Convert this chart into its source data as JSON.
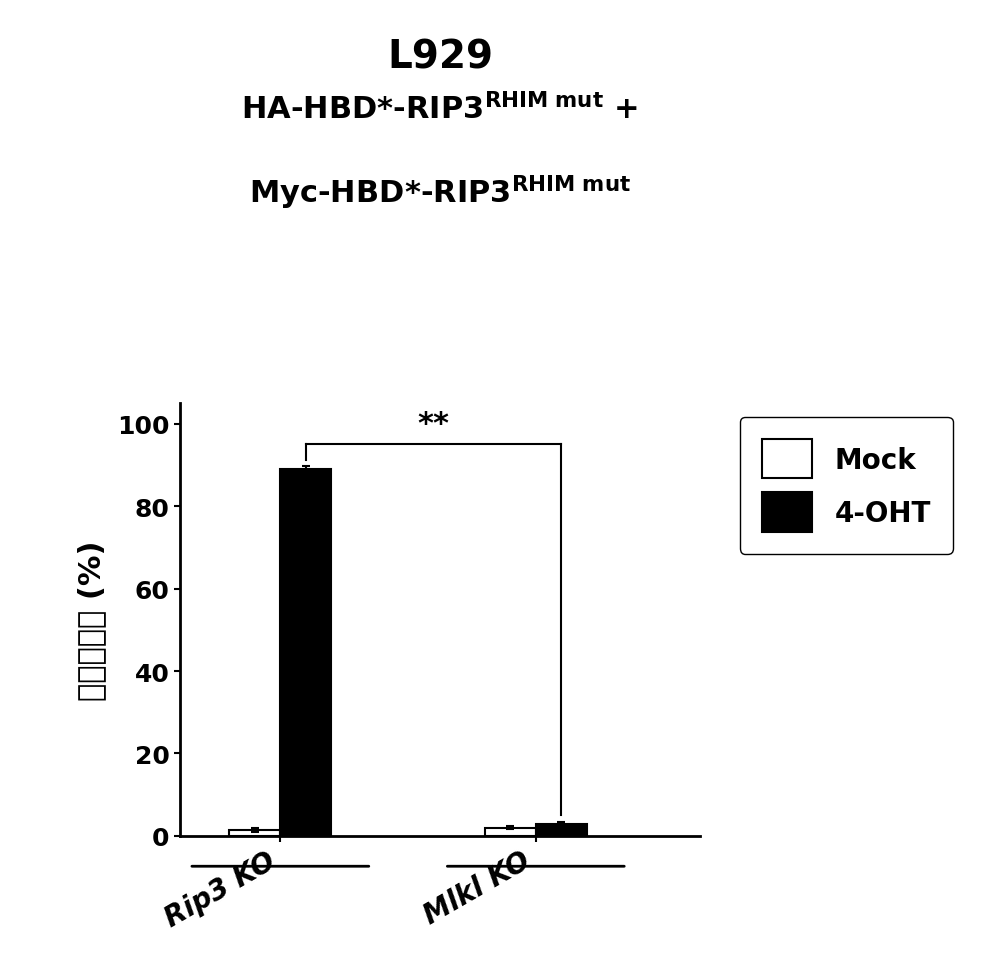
{
  "title": "L929",
  "ylabel": "细胞死亡率 (%)",
  "groups": [
    "Rip3 KO",
    "Mlkl KO"
  ],
  "mock_values": [
    1.5,
    2.0
  ],
  "oht_values": [
    89.0,
    3.0
  ],
  "mock_errors": [
    0.5,
    0.4
  ],
  "oht_errors": [
    0.8,
    0.5
  ],
  "bar_width": 0.28,
  "group_positions": [
    1.0,
    2.4
  ],
  "xlim": [
    0.45,
    3.3
  ],
  "ylim": [
    0,
    105
  ],
  "yticks": [
    0,
    20,
    40,
    60,
    80,
    100
  ],
  "mock_color": "#ffffff",
  "oht_color": "#000000",
  "bar_edgecolor": "#000000",
  "significance_text": "**",
  "legend_labels": [
    "Mock",
    "4-OHT"
  ],
  "title_fontsize": 28,
  "subtitle_fontsize": 22,
  "subtitle_sup_fontsize": 14,
  "axis_fontsize": 20,
  "tick_fontsize": 18,
  "legend_fontsize": 20,
  "sig_fontsize": 22,
  "subtitle_line1_base": "HA-HBD*-RIP3",
  "subtitle_line1_sup": "RHIM mut",
  "subtitle_line1_end": " +",
  "subtitle_line2_base": "Myc-HBD*-RIP3",
  "subtitle_line2_sup": "RHIM mut"
}
